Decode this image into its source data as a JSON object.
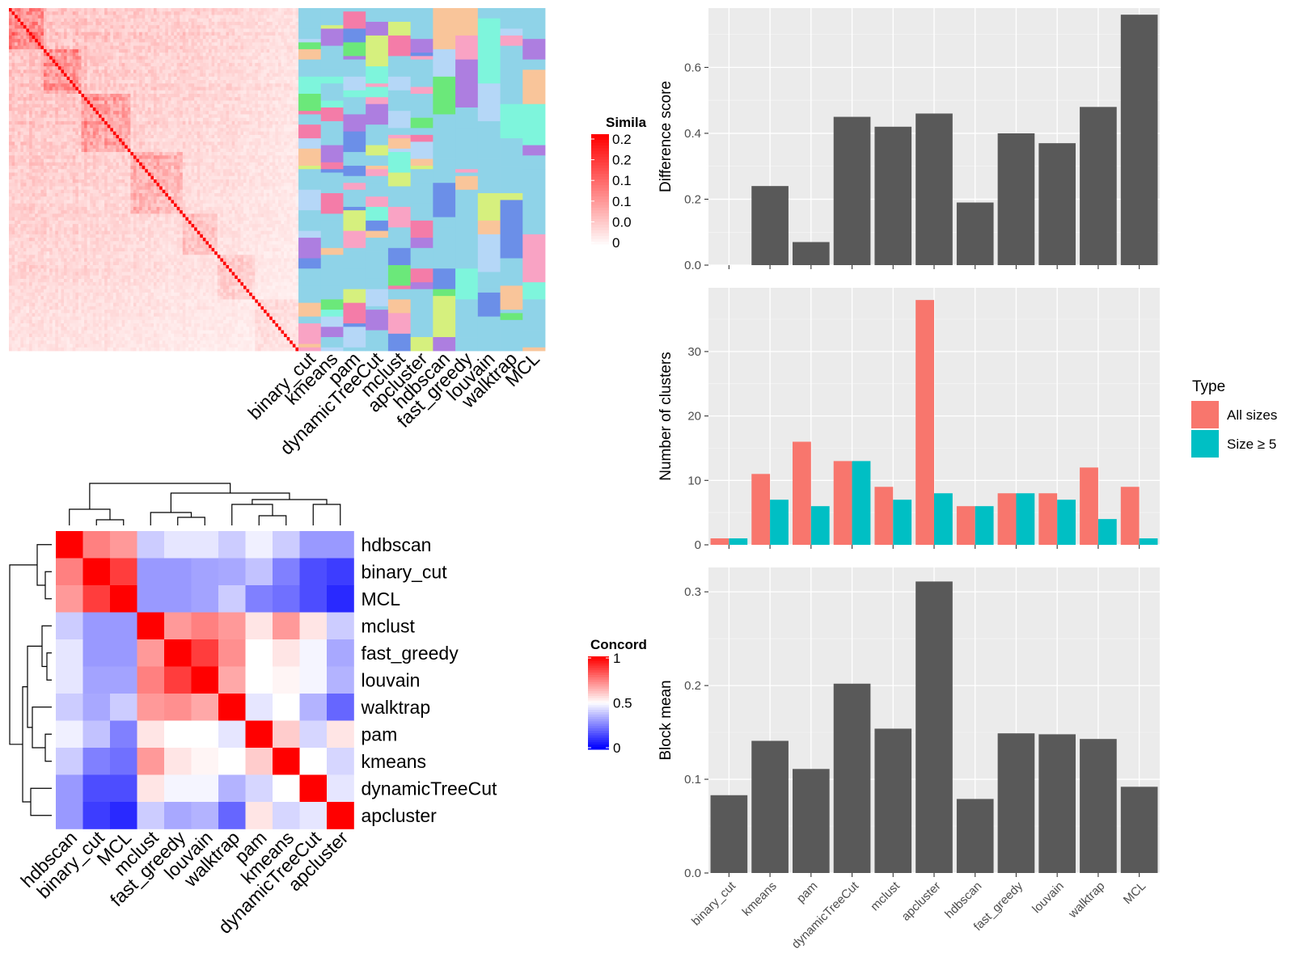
{
  "chart_data": [
    {
      "type": "heatmap",
      "panel": "similarity-matrix",
      "legend_title": "Simila",
      "legend_ticks": [
        "0.2",
        "0.2",
        "0.1",
        "0.1",
        "0.0",
        "0"
      ],
      "colors": {
        "high": "#ff0000",
        "low": "#ffffff"
      },
      "n_cells": 100,
      "notes_color_annotation_columns": [
        "binary_cut",
        "kmeans",
        "pam",
        "dynamicTreeCut",
        "mclust",
        "apcluster",
        "hdbscan",
        "fast_greedy",
        "louvain",
        "walktrap",
        "MCL"
      ]
    },
    {
      "type": "heatmap",
      "panel": "concordance-matrix",
      "legend_title": "Concord",
      "legend_ticks": [
        "1",
        "0.5",
        "0"
      ],
      "colors": {
        "high": "#ff0000",
        "mid": "#ffffff",
        "low": "#0000ff"
      },
      "rows": [
        "hdbscan",
        "binary_cut",
        "MCL",
        "mclust",
        "fast_greedy",
        "louvain",
        "walktrap",
        "pam",
        "kmeans",
        "dynamicTreeCut",
        "apcluster"
      ],
      "cols": [
        "hdbscan",
        "binary_cut",
        "MCL",
        "mclust",
        "fast_greedy",
        "louvain",
        "walktrap",
        "pam",
        "kmeans",
        "dynamicTreeCut",
        "apcluster"
      ],
      "values": [
        [
          1.0,
          0.75,
          0.7,
          0.4,
          0.45,
          0.45,
          0.4,
          0.47,
          0.4,
          0.3,
          0.3
        ],
        [
          0.75,
          1.0,
          0.88,
          0.3,
          0.3,
          0.32,
          0.33,
          0.38,
          0.25,
          0.15,
          0.12
        ],
        [
          0.7,
          0.88,
          1.0,
          0.3,
          0.3,
          0.32,
          0.4,
          0.25,
          0.22,
          0.15,
          0.08
        ],
        [
          0.4,
          0.3,
          0.3,
          1.0,
          0.7,
          0.75,
          0.7,
          0.55,
          0.7,
          0.55,
          0.4
        ],
        [
          0.45,
          0.3,
          0.3,
          0.7,
          1.0,
          0.88,
          0.72,
          0.5,
          0.55,
          0.48,
          0.33
        ],
        [
          0.45,
          0.32,
          0.32,
          0.75,
          0.88,
          1.0,
          0.67,
          0.5,
          0.52,
          0.48,
          0.35
        ],
        [
          0.4,
          0.33,
          0.4,
          0.7,
          0.72,
          0.67,
          1.0,
          0.45,
          0.5,
          0.35,
          0.2
        ],
        [
          0.47,
          0.38,
          0.25,
          0.55,
          0.5,
          0.5,
          0.45,
          1.0,
          0.6,
          0.42,
          0.55
        ],
        [
          0.4,
          0.25,
          0.22,
          0.7,
          0.55,
          0.52,
          0.5,
          0.6,
          1.0,
          0.5,
          0.42
        ],
        [
          0.3,
          0.15,
          0.15,
          0.55,
          0.48,
          0.48,
          0.35,
          0.42,
          0.5,
          1.0,
          0.45
        ],
        [
          0.3,
          0.12,
          0.08,
          0.4,
          0.33,
          0.35,
          0.2,
          0.55,
          0.42,
          0.45,
          1.0
        ]
      ]
    },
    {
      "type": "bar",
      "panel": "difference-score",
      "categories": [
        "binary_cut",
        "kmeans",
        "pam",
        "dynamicTreeCut",
        "mclust",
        "apcluster",
        "hdbscan",
        "fast_greedy",
        "louvain",
        "walktrap",
        "MCL"
      ],
      "values": [
        0,
        0.24,
        0.07,
        0.45,
        0.42,
        0.46,
        0.19,
        0.4,
        0.37,
        0.48,
        0.76
      ],
      "ylabel": "Difference score",
      "ylim": [
        0,
        0.78
      ],
      "yticks": [
        0.0,
        0.2,
        0.4,
        0.6
      ],
      "tick_labels": [
        "0.0",
        "0.2",
        "0.4",
        "0.6"
      ],
      "grid": true
    },
    {
      "type": "bar",
      "panel": "number-of-clusters",
      "categories": [
        "binary_cut",
        "kmeans",
        "pam",
        "dynamicTreeCut",
        "mclust",
        "apcluster",
        "hdbscan",
        "fast_greedy",
        "louvain",
        "walktrap",
        "MCL"
      ],
      "series": [
        {
          "name": "All sizes",
          "color": "#f8766d",
          "values": [
            1,
            11,
            16,
            13,
            9,
            38,
            6,
            8,
            8,
            12,
            9
          ]
        },
        {
          "name": "Size ≥ 5",
          "color": "#00bfc4",
          "values": [
            1,
            7,
            6,
            13,
            7,
            8,
            6,
            8,
            7,
            4,
            1
          ]
        }
      ],
      "ylabel": "Number of clusters",
      "legend_title": "Type",
      "legend_position": "right",
      "ylim": [
        0,
        39.9
      ],
      "yticks": [
        0,
        10,
        20,
        30
      ],
      "tick_labels": [
        "0",
        "10",
        "20",
        "30"
      ],
      "grid": true
    },
    {
      "type": "bar",
      "panel": "block-mean",
      "categories": [
        "binary_cut",
        "kmeans",
        "pam",
        "dynamicTreeCut",
        "mclust",
        "apcluster",
        "hdbscan",
        "fast_greedy",
        "louvain",
        "walktrap",
        "MCL"
      ],
      "values": [
        0.083,
        0.141,
        0.111,
        0.202,
        0.154,
        0.311,
        0.079,
        0.149,
        0.148,
        0.143,
        0.092
      ],
      "ylabel": "Block mean",
      "ylim": [
        0,
        0.326
      ],
      "yticks": [
        0.0,
        0.1,
        0.2,
        0.3
      ],
      "tick_labels": [
        "0.0",
        "0.1",
        "0.2",
        "0.3"
      ],
      "grid": true
    }
  ]
}
